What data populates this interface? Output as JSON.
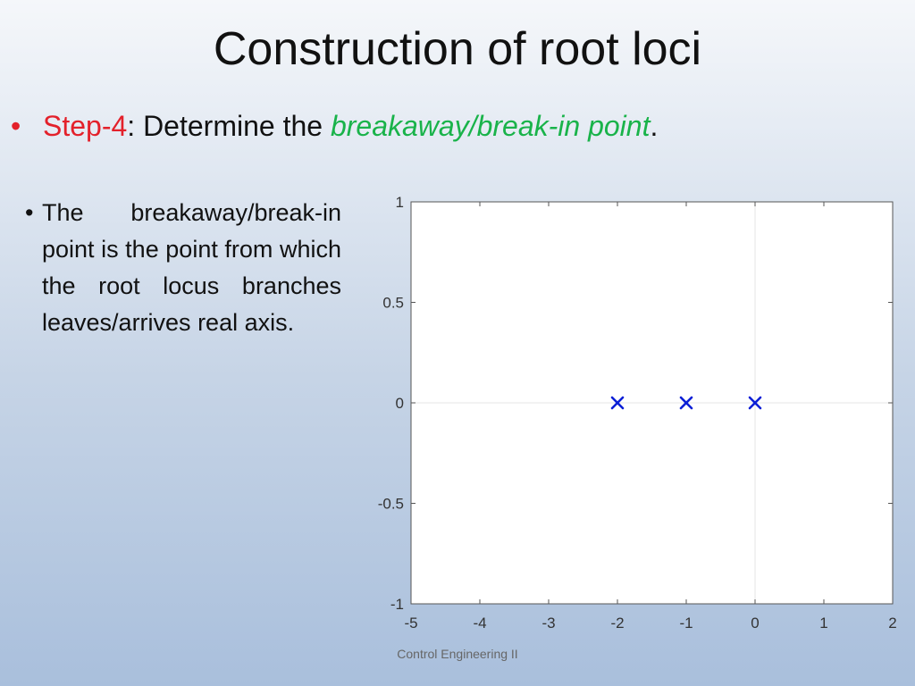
{
  "slide": {
    "title": "Construction of root loci",
    "step": {
      "bullet": "•",
      "label": "Step-4",
      "text": ": Determine the ",
      "highlight": "breakaway/break-in point",
      "end": "."
    },
    "definition": {
      "bullet": "•",
      "text": "The breakaway/break-in point is the point from which the root locus branches leaves/arrives real axis."
    },
    "footer": "Control Engineering II",
    "colors": {
      "step_label": "#e3212b",
      "highlight": "#19b34a",
      "pole_marker": "#0a1fd6"
    }
  },
  "chart_data": {
    "type": "scatter",
    "title": "",
    "xlabel": "",
    "ylabel": "",
    "xlim": [
      -5,
      2
    ],
    "ylim": [
      -1,
      1
    ],
    "x_ticks": [
      -5,
      -4,
      -3,
      -2,
      -1,
      0,
      1,
      2
    ],
    "x_tick_labels": [
      "-5",
      "-4",
      "-3",
      "-2",
      "-1",
      "0",
      "1",
      "2"
    ],
    "y_ticks": [
      -1,
      -0.5,
      0,
      0.5,
      1
    ],
    "y_tick_labels": [
      "-1",
      "-0.5",
      "0",
      "0.5",
      "1"
    ],
    "grid": "axes-lines-through-origin",
    "marker": "x",
    "series": [
      {
        "points": [
          {
            "x": -2,
            "y": 0
          },
          {
            "x": -1,
            "y": 0
          },
          {
            "x": 0,
            "y": 0
          }
        ]
      }
    ]
  }
}
